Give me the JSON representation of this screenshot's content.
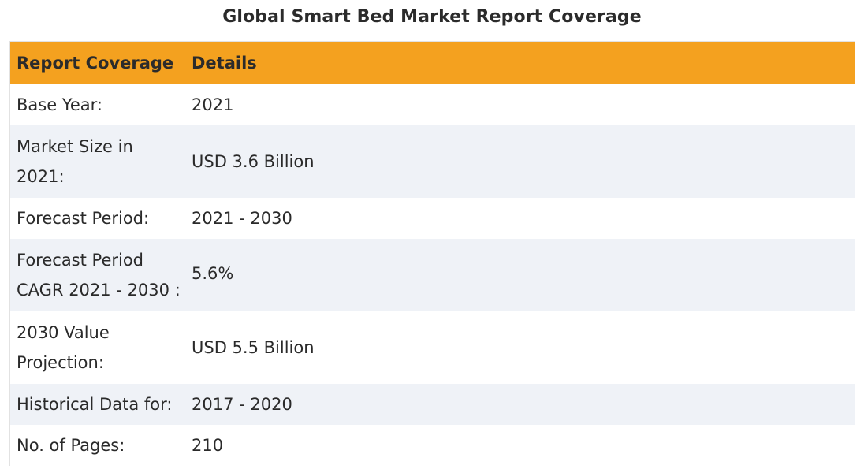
{
  "title": "Global Smart Bed Market Report Coverage",
  "table": {
    "headers": [
      "Report Coverage",
      "Details"
    ],
    "rows": [
      {
        "label": "Base Year:",
        "value": "2021"
      },
      {
        "label": "Market Size in 2021:",
        "value": "USD 3.6 Billion"
      },
      {
        "label": "Forecast Period:",
        "value": "2021 - 2030"
      },
      {
        "label": "Forecast Period CAGR 2021 - 2030 :",
        "value": "5.6%"
      },
      {
        "label": "2030 Value Projection:",
        "value": "USD 5.5 Billion"
      },
      {
        "label": "Historical Data for:",
        "value": "2017 - 2020"
      },
      {
        "label": "No. of Pages:",
        "value": "210"
      }
    ]
  },
  "colors": {
    "header_bg": "#f4a11f",
    "stripe_bg": "#eff2f7"
  }
}
